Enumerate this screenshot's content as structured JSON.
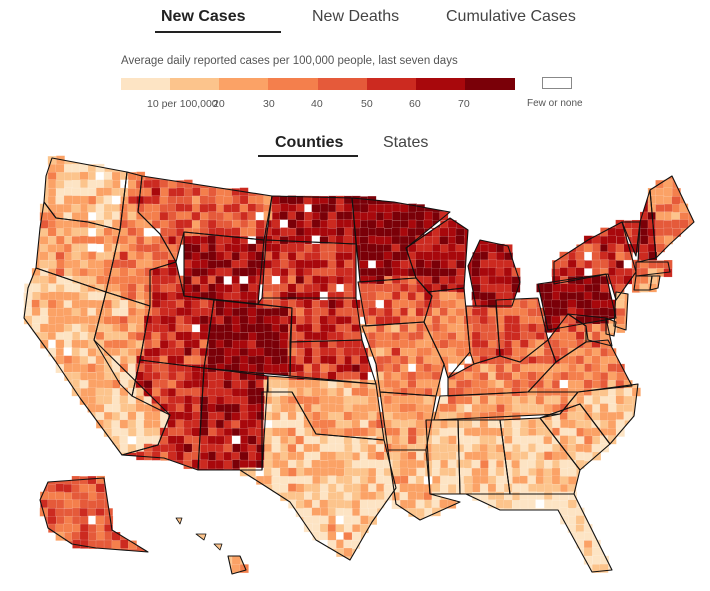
{
  "tabs": [
    {
      "label": "New Cases",
      "active": true
    },
    {
      "label": "New Deaths",
      "active": false
    },
    {
      "label": "Cumulative Cases",
      "active": false
    }
  ],
  "subtitle": "Average daily reported cases per 100,000 people, last seven days",
  "legend": {
    "colors": [
      "#fde4c4",
      "#fcc48c",
      "#fba266",
      "#f47f4c",
      "#e55a3a",
      "#cc2a20",
      "#a8080c",
      "#7a0008"
    ],
    "ticks": [
      "10 per 100,000",
      "20",
      "30",
      "40",
      "50",
      "60",
      "70"
    ],
    "few_label": "Few or none"
  },
  "view_tabs": [
    {
      "label": "Counties",
      "active": true
    },
    {
      "label": "States",
      "active": false
    }
  ],
  "map": {
    "type": "choropleth",
    "region": "United States counties",
    "state_levels": {
      "WA": 1,
      "OR": 2,
      "CA": 1,
      "NV": 2,
      "ID": 3,
      "MT": 4,
      "WY": 6,
      "UT": 5,
      "AZ": 5,
      "NM": 6,
      "CO": 7,
      "ND": 6,
      "SD": 5,
      "NE": 5,
      "KS": 5,
      "OK": 2,
      "TX": 1,
      "MN": 7,
      "IA": 4,
      "MO": 3,
      "AR": 2,
      "LA": 1,
      "WI": 6,
      "IL": 3,
      "MI": 6,
      "IN": 4,
      "OH": 4,
      "KY": 3,
      "TN": 2,
      "MS": 1,
      "AL": 1,
      "GA": 1,
      "FL": 0,
      "SC": 1,
      "NC": 1,
      "VA": 3,
      "WV": 4,
      "PA": 7,
      "NY": 5,
      "VT": 5,
      "NH": 6,
      "ME": 3,
      "MA": 3,
      "CT": 2,
      "RI": 2,
      "NJ": 2,
      "DE": 2,
      "MD": 3,
      "AK": 4,
      "HI": 1
    }
  }
}
